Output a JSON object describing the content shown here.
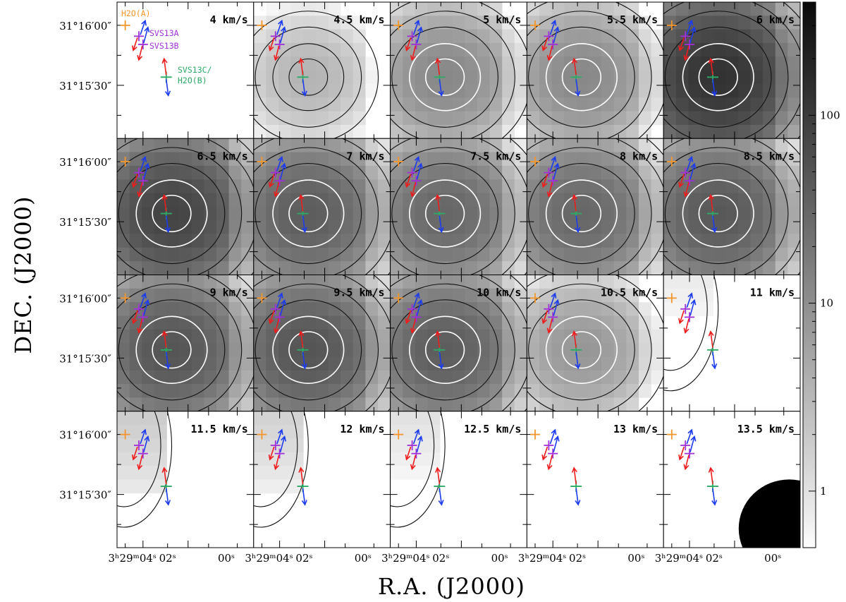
{
  "chart_data": {
    "type": "heatmap",
    "title": "",
    "xlabel": "R.A. (J2000)",
    "ylabel": "DEC. (J2000)",
    "grid": false,
    "panel_layout": "4 rows x 5 columns",
    "panel_units": "km/s",
    "panels": [
      {
        "velocity": "4 km/s",
        "peak": 0.0
      },
      {
        "velocity": "4.5 km/s",
        "peak": 3.5
      },
      {
        "velocity": "5 km/s",
        "peak": 12
      },
      {
        "velocity": "5.5 km/s",
        "peak": 12
      },
      {
        "velocity": "6 km/s",
        "peak": 130
      },
      {
        "velocity": "6.5 km/s",
        "peak": 80
      },
      {
        "velocity": "7 km/s",
        "peak": 40
      },
      {
        "velocity": "7.5 km/s",
        "peak": 30
      },
      {
        "velocity": "8 km/s",
        "peak": 30
      },
      {
        "velocity": "8.5 km/s",
        "peak": 45
      },
      {
        "velocity": "9 km/s",
        "peak": 50
      },
      {
        "velocity": "9.5 km/s",
        "peak": 50
      },
      {
        "velocity": "10 km/s",
        "peak": 40
      },
      {
        "velocity": "10.5 km/s",
        "peak": 8
      },
      {
        "velocity": "11 km/s",
        "peak": 0.6
      },
      {
        "velocity": "11.5 km/s",
        "peak": 1.4
      },
      {
        "velocity": "12 km/s",
        "peak": 1.2
      },
      {
        "velocity": "12.5 km/s",
        "peak": 0.8
      },
      {
        "velocity": "13 km/s",
        "peak": 0.0
      },
      {
        "velocity": "13.5 km/s",
        "peak": 0.0
      }
    ],
    "y_ticks": [
      "31°16′00″",
      "31°15′30″"
    ],
    "x_ticks": [
      "3ʰ29ᵐ04ˢ",
      "02ˢ",
      "00ˢ"
    ],
    "colorbar": {
      "scale": "log",
      "range": [
        0.5,
        400
      ],
      "ticks": [
        "1",
        "10",
        "100"
      ],
      "colormap": "white-to-black"
    },
    "sources": [
      {
        "name": "H2O(A)",
        "color": "#f4962a"
      },
      {
        "name": "SVS13A",
        "color": "#a030d8"
      },
      {
        "name": "SVS13B",
        "color": "#a030d8"
      },
      {
        "name": "SVS13C/ H2O(B)",
        "color": "#2eaa66"
      }
    ],
    "source_label_lines": {
      "svs13c_line1": "SVS13C/",
      "svs13c_line2": "H2O(B)"
    },
    "outflow_colors": {
      "red": "#ee1c1c",
      "blue": "#1c3cee"
    },
    "beam": "filled ellipse, lower-right of last panel"
  }
}
